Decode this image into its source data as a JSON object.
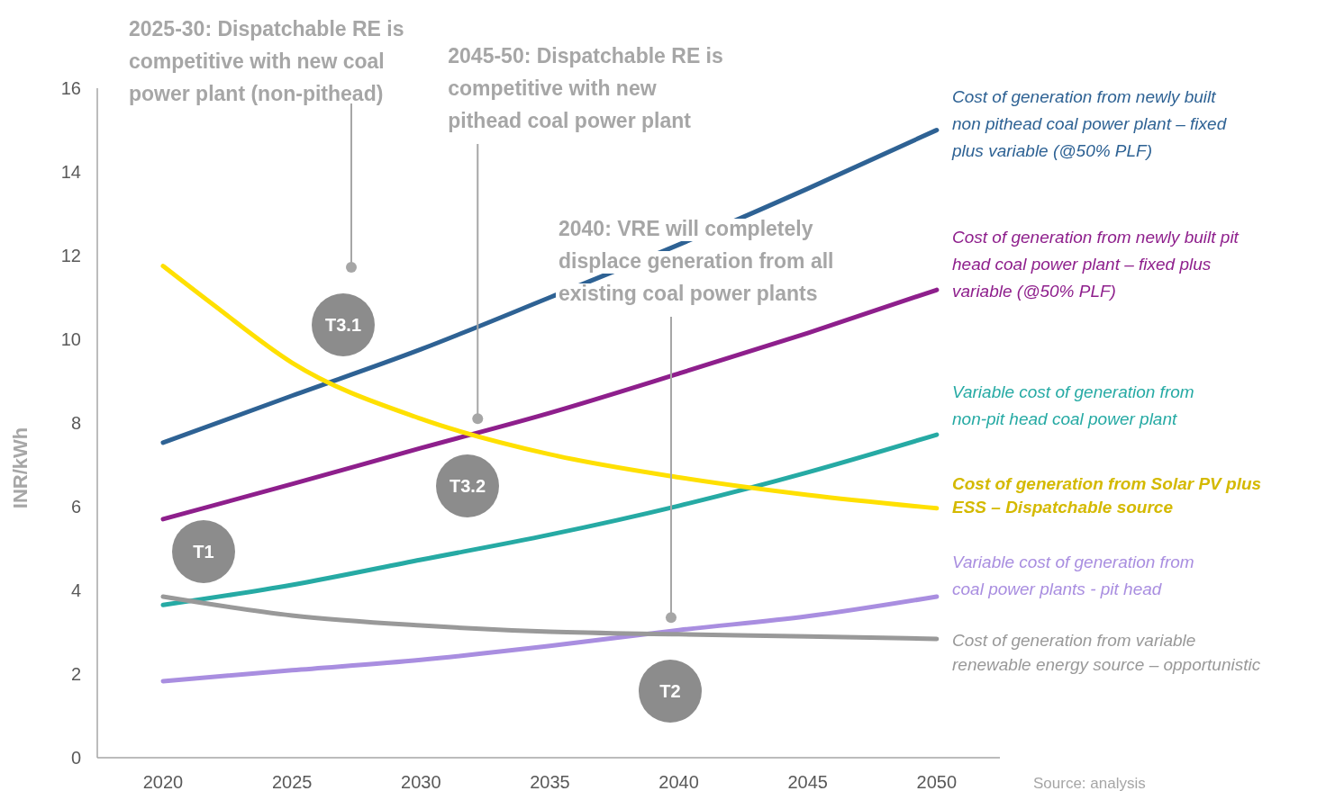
{
  "chart_data": {
    "type": "line",
    "ylabel": "INR/kWh",
    "x": [
      2020,
      2025,
      2030,
      2035,
      2040,
      2045,
      2050
    ],
    "xlim": [
      2017.45,
      2052.45
    ],
    "xticks": [
      2020,
      2025,
      2030,
      2035,
      2040,
      2045,
      2050
    ],
    "ylim": [
      0,
      16
    ],
    "yticks": [
      0,
      2,
      4,
      6,
      8,
      10,
      12,
      14,
      16
    ],
    "grid": false,
    "marker": "none",
    "line_style": "solid",
    "series": [
      {
        "name": "Cost of generation from newly built non pithead coal power plant – fixed plus variable (@50% PLF)",
        "color": "#2e6294",
        "values": [
          7.53,
          8.65,
          9.76,
          11.0,
          12.26,
          13.6,
          15.0
        ]
      },
      {
        "name": "Cost of generation from newly built pit head coal power plant – fixed plus variable (@50% PLF)",
        "color": "#8e1f8c",
        "values": [
          5.7,
          6.54,
          7.4,
          8.24,
          9.18,
          10.15,
          11.18
        ]
      },
      {
        "name": "Variable cost of generation from non-pit head coal power plant",
        "color": "#26aaa4",
        "values": [
          3.65,
          4.13,
          4.73,
          5.33,
          6.02,
          6.82,
          7.72
        ]
      },
      {
        "name": "Cost of generation from Solar PV plus ESS – Dispatchable source",
        "color": "#ffe000",
        "x": [
          2020,
          2022,
          2025,
          2030,
          2035,
          2040,
          2045,
          2050
        ],
        "values": [
          11.75,
          10.8,
          9.44,
          8.1,
          7.25,
          6.7,
          6.28,
          5.96
        ]
      },
      {
        "name": "Variable cost of generation from coal power plants - pit head",
        "color": "#a98ee0",
        "values": [
          1.83,
          2.09,
          2.34,
          2.67,
          3.05,
          3.38,
          3.85
        ]
      },
      {
        "name": "Cost of generation from variable renewable energy source – opportunistic",
        "color": "#999999",
        "values": [
          3.85,
          3.4,
          3.16,
          3.01,
          2.95,
          2.9,
          2.84
        ]
      }
    ],
    "annotations": [
      {
        "text": "2025-30: Dispatchable RE is competitive with new coal power plant (non-pithead)",
        "x": 2027.3,
        "y": 11.72
      },
      {
        "text": "2045-50: Dispatchable RE is competitive with new pithead coal power plant",
        "x": 2032.2,
        "y": 8.1
      },
      {
        "text": "2040: VRE will completely displace generation from all existing coal power plants",
        "x": 2039.7,
        "y": 3.35
      },
      "T3.1",
      "T1",
      "T3.2",
      "T2",
      "Source: analysis"
    ]
  }
}
